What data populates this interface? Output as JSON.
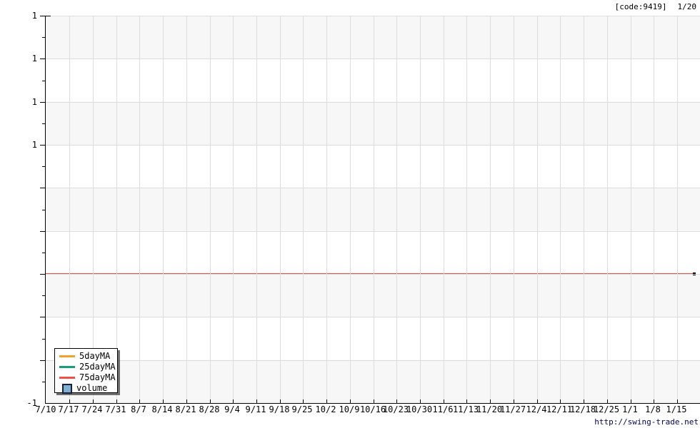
{
  "header": {
    "code": "[code:9419]",
    "date": "1/20"
  },
  "footer": {
    "url": "http://swing-trade.net"
  },
  "legend": {
    "position": "bottom-left",
    "items": [
      {
        "label": "5dayMA",
        "swatch": "line",
        "color": "#F0A22C"
      },
      {
        "label": "25dayMA",
        "swatch": "line",
        "color": "#169E77"
      },
      {
        "label": "75dayMA",
        "swatch": "line",
        "color": "#F05046"
      },
      {
        "label": "volume",
        "swatch": "box",
        "color": "#7FB0D2",
        "border_color": "#16213E"
      }
    ]
  },
  "chart_data": {
    "type": "line",
    "title": "",
    "xlabel": "",
    "ylabel": "",
    "x_tick_labels": [
      "7/10",
      "7/17",
      "7/24",
      "7/31",
      "8/7",
      "8/14",
      "8/21",
      "8/28",
      "9/4",
      "9/11",
      "9/18",
      "9/25",
      "10/2",
      "10/9",
      "10/16",
      "10/23",
      "10/30",
      "11/6",
      "11/13",
      "11/20",
      "11/27",
      "12/4",
      "12/11",
      "12/18",
      "12/25",
      "1/1",
      "1/8",
      "1/15"
    ],
    "y_tick_labels": [
      "1",
      "1",
      "1",
      "1",
      "",
      "",
      "",
      "",
      "",
      "-1"
    ],
    "n_y_intervals": 9,
    "grid": true,
    "band_colors": [
      "#F7F7F7",
      "#FFFFFF"
    ],
    "gridline_color": "#DCDCDC",
    "series": [
      {
        "name": "5dayMA",
        "color": "#F0A22C",
        "drawn_in_plot": false
      },
      {
        "name": "25dayMA",
        "color": "#169E77",
        "drawn_in_plot": false
      },
      {
        "name": "75dayMA",
        "color": "#F05046",
        "drawn_in_plot": true,
        "shape": "horizontal-line",
        "y_fraction_from_top": 0.667
      },
      {
        "name": "volume",
        "color": "#7FB0D2",
        "drawn_in_plot": false
      }
    ],
    "end_marker_color": "#000000",
    "legend_position": "bottom-left"
  }
}
